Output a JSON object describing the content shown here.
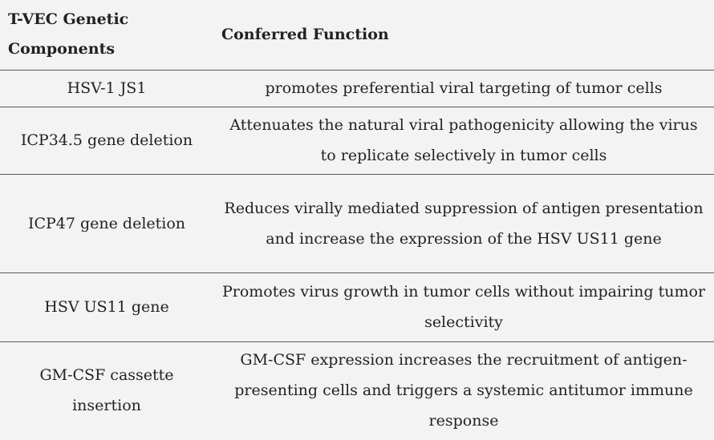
{
  "table": {
    "headers": [
      "T-VEC Genetic Components",
      "Conferred Function"
    ],
    "rows": [
      [
        "HSV-1 JS1",
        "promotes preferential viral targeting of tumor cells"
      ],
      [
        "ICP34.5 gene deletion",
        "Attenuates the natural viral pathogenicity allowing the virus to replicate selectively in tumor cells"
      ],
      [
        "ICP47 gene deletion",
        "Reduces virally mediated suppression of antigen presentation and increase the expression of the HSV US11 gene"
      ],
      [
        "HSV US11 gene",
        "Promotes virus growth in tumor cells without impairing tumor selectivity"
      ],
      [
        "GM-CSF cassette insertion",
        "GM-CSF expression increases the recruitment of antigen-presenting cells and triggers a systemic antitumor immune response"
      ]
    ]
  }
}
